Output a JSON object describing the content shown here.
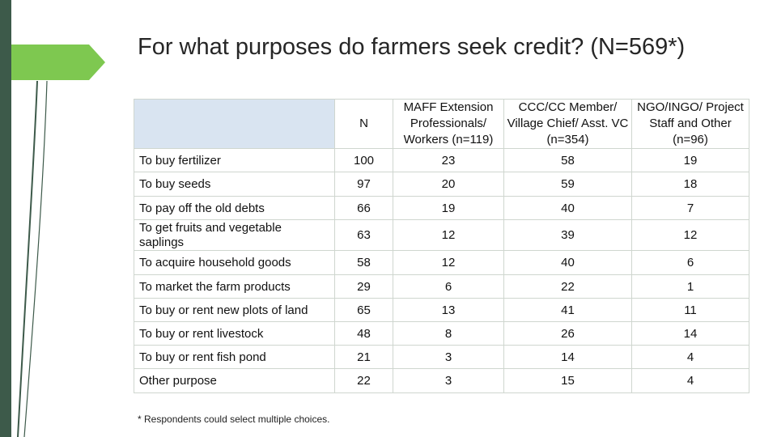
{
  "title": "For what purposes do farmers seek credit? (N=569*)",
  "colors": {
    "left_bar": "#3d5a4a",
    "accent_green": "#7ec850",
    "dark_line": "#3d5a4a",
    "header_blank": "#d9e4f1"
  },
  "table": {
    "columns": [
      "",
      "N",
      "MAFF Extension Professionals/ Workers (n=119)",
      "CCC/CC Member/ Village Chief/ Asst. VC (n=354)",
      "NGO/INGO/ Project Staff and Other (n=96)"
    ],
    "rows": [
      {
        "label": "To buy fertilizer",
        "cells": [
          "100",
          "23",
          "58",
          "19"
        ]
      },
      {
        "label": "To buy seeds",
        "cells": [
          "97",
          "20",
          "59",
          "18"
        ]
      },
      {
        "label": "To pay off the old debts",
        "cells": [
          "66",
          "19",
          "40",
          "7"
        ]
      },
      {
        "label": "To get fruits and vegetable saplings",
        "cells": [
          "63",
          "12",
          "39",
          "12"
        ]
      },
      {
        "label": "To acquire household goods",
        "cells": [
          "58",
          "12",
          "40",
          "6"
        ]
      },
      {
        "label": "To market the farm products",
        "cells": [
          "29",
          "6",
          "22",
          "1"
        ]
      },
      {
        "label": "To buy or rent new plots of land",
        "cells": [
          "65",
          "13",
          "41",
          "11"
        ]
      },
      {
        "label": "To buy or rent livestock",
        "cells": [
          "48",
          "8",
          "26",
          "14"
        ]
      },
      {
        "label": "To buy or rent fish pond",
        "cells": [
          "21",
          "3",
          "14",
          "4"
        ]
      },
      {
        "label": "Other purpose",
        "cells": [
          "22",
          "3",
          "15",
          "4"
        ]
      }
    ]
  },
  "footnote": "* Respondents could select multiple choices."
}
